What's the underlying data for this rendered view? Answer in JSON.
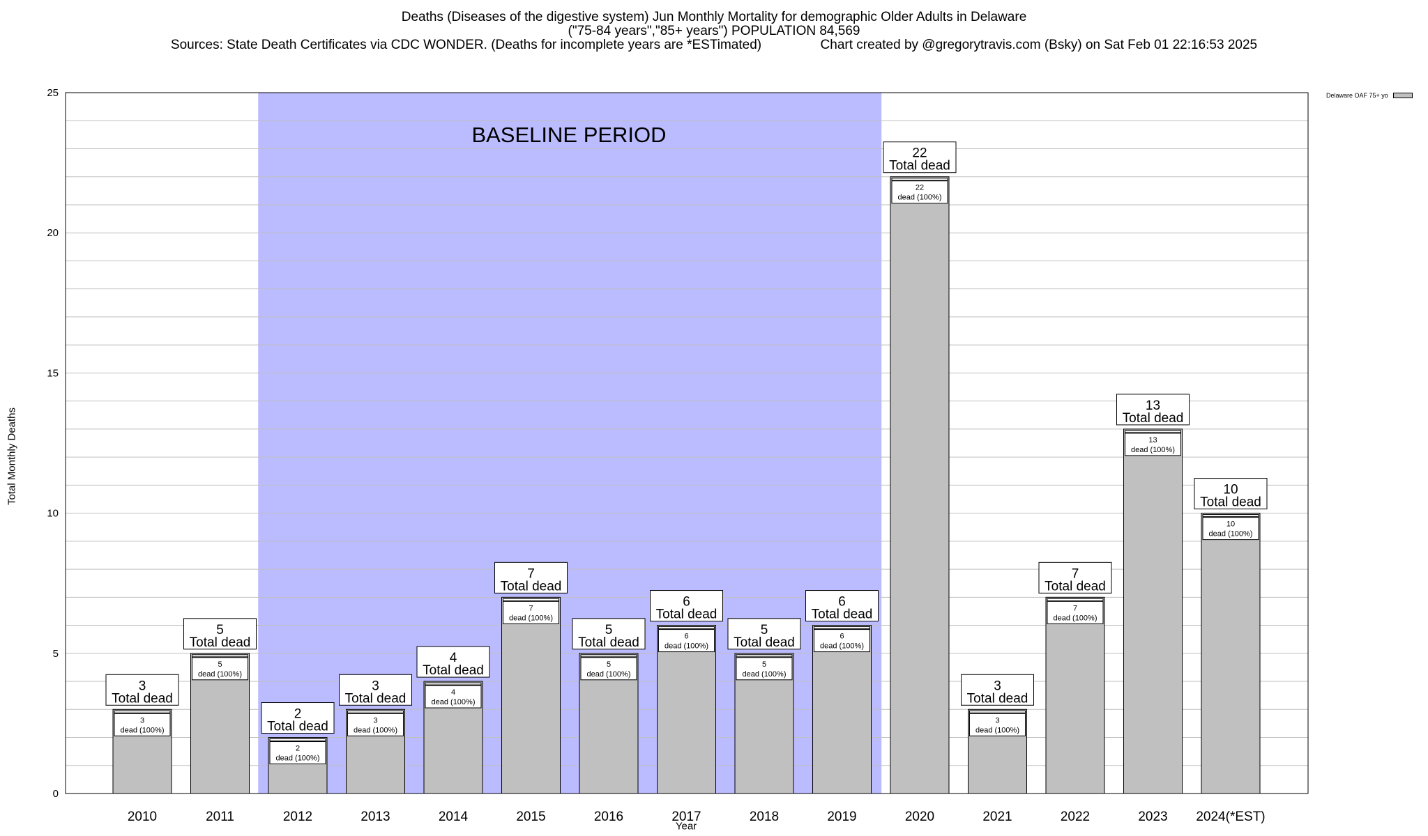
{
  "title_lines": [
    "Deaths (Diseases of the digestive system) Jun Monthly Mortality for demographic Older Adults in Delaware",
    "(\"75-84 years\",\"85+ years\") POPULATION 84,569",
    "Sources: State Death Certificates via CDC WONDER. (Deaths for incomplete years are *ESTimated)                Chart created by @gregorytravis.com (Bsky) on Sat Feb 01 22:16:53 2025"
  ],
  "annotation": "BASELINE PERIOD",
  "legend": "Delaware OAF 75+ yo",
  "colors": {
    "bar": "#c0c0c0",
    "baseline_shade": "#bbbbff",
    "grid": "#bfbfbf"
  },
  "chart_data": {
    "type": "bar",
    "xlabel": "Year",
    "ylabel": "Total Monthly Deaths",
    "ylim": [
      0,
      25
    ],
    "yticks": [
      0,
      5,
      10,
      15,
      20,
      25
    ],
    "grid": true,
    "legend_position": "top-right",
    "baseline_period": [
      "2012",
      "2019"
    ],
    "categories": [
      "2010",
      "2011",
      "2012",
      "2013",
      "2014",
      "2015",
      "2016",
      "2017",
      "2018",
      "2019",
      "2020",
      "2021",
      "2022",
      "2023",
      "2024(*EST)"
    ],
    "series": [
      {
        "name": "Delaware OAF 75+ yo",
        "values": [
          3,
          5,
          2,
          3,
          4,
          7,
          5,
          6,
          5,
          6,
          22,
          3,
          7,
          13,
          10
        ]
      }
    ],
    "total_label": "Total dead",
    "inner_label": "dead (100%)"
  }
}
